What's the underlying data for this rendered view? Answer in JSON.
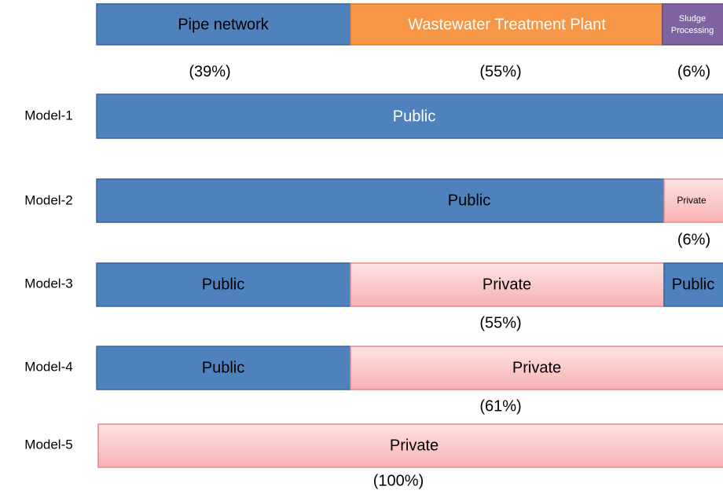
{
  "header": {
    "segments": [
      {
        "label": "Pipe network",
        "share": "(39%)"
      },
      {
        "label_lines": [
          "Sludge",
          "Processing"
        ],
        "share": "(6%)"
      },
      {
        "label": "Wastewater Treatment Plant",
        "share": "(55%)"
      }
    ]
  },
  "models": [
    {
      "name": "Model-1",
      "segments": [
        "Public"
      ]
    },
    {
      "name": "Model-2",
      "segments": [
        "Public",
        "Private"
      ],
      "private_share": "(6%)"
    },
    {
      "name": "Model-3",
      "segments": [
        "Public",
        "Private",
        "Public"
      ],
      "private_share": "(55%)"
    },
    {
      "name": "Model-4",
      "segments": [
        "Public",
        "Private"
      ],
      "private_share": "(61%)"
    },
    {
      "name": "Model-5",
      "segments": [
        "Private"
      ],
      "private_share": "(100%)"
    }
  ]
}
